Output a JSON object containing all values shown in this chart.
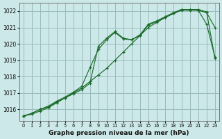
{
  "title": "Graphe pression niveau de la mer (hPa)",
  "background_color": "#cce8e8",
  "grid_color": "#99bbbb",
  "line_color": "#1a6b2a",
  "xlim": [
    -0.5,
    23.5
  ],
  "ylim": [
    1015.3,
    1022.5
  ],
  "yticks": [
    1016,
    1017,
    1018,
    1019,
    1020,
    1021,
    1022
  ],
  "xticks": [
    0,
    1,
    2,
    3,
    4,
    5,
    6,
    7,
    8,
    9,
    10,
    11,
    12,
    13,
    14,
    15,
    16,
    17,
    18,
    19,
    20,
    21,
    22,
    23
  ],
  "series": [
    [
      1015.6,
      1015.7,
      1015.9,
      1016.1,
      1016.4,
      1016.7,
      1017.0,
      1017.3,
      1017.7,
      1018.1,
      1018.5,
      1019.0,
      1019.5,
      1020.0,
      1020.5,
      1021.0,
      1021.3,
      1021.6,
      1021.85,
      1022.05,
      1022.05,
      1022.05,
      1021.9,
      1021.0
    ],
    [
      1015.6,
      1015.75,
      1016.0,
      1016.15,
      1016.45,
      1016.7,
      1016.95,
      1017.2,
      1017.6,
      1019.85,
      1020.35,
      1020.75,
      1020.35,
      1020.25,
      1020.5,
      1021.15,
      1021.35,
      1021.6,
      1021.85,
      1022.1,
      1022.1,
      1022.1,
      1021.95,
      1019.1
    ],
    [
      1015.6,
      1015.75,
      1016.0,
      1016.2,
      1016.5,
      1016.75,
      1017.05,
      1017.4,
      1018.55,
      1019.65,
      1020.25,
      1020.7,
      1020.3,
      1020.25,
      1020.55,
      1021.2,
      1021.4,
      1021.65,
      1021.9,
      1022.1,
      1022.1,
      1022.05,
      1021.2,
      1019.2
    ]
  ]
}
